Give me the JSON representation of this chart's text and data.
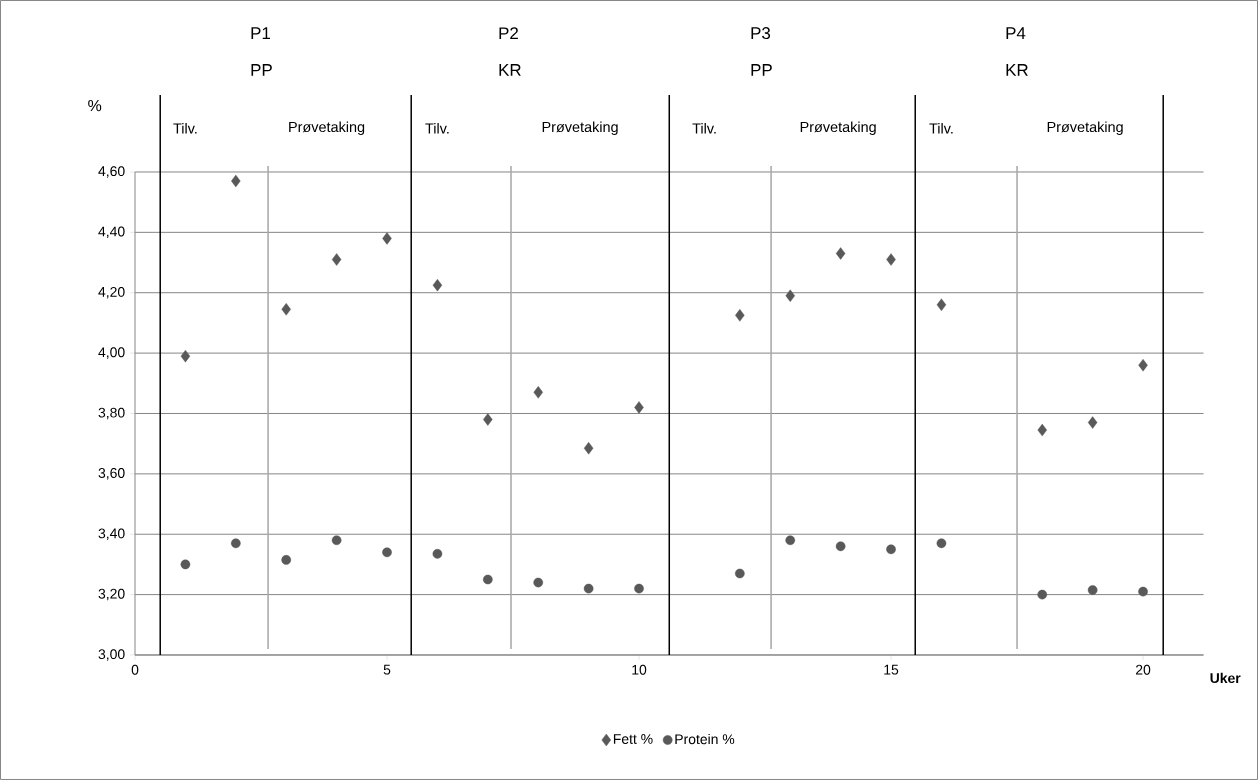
{
  "chart_data": {
    "type": "scatter",
    "xlabel": "Uker",
    "ylabel": "%",
    "x": [
      1,
      2,
      3,
      4,
      5,
      6,
      7,
      8,
      9,
      10,
      12,
      13,
      14,
      15,
      16,
      18,
      19,
      20
    ],
    "series": [
      {
        "name": "Fett %",
        "color": "#595959",
        "marker": "diamond",
        "values": [
          3.99,
          4.57,
          4.145,
          4.31,
          4.38,
          4.225,
          3.78,
          3.87,
          3.685,
          3.82,
          4.125,
          4.19,
          4.33,
          4.31,
          4.16,
          3.745,
          3.77,
          3.96
        ]
      },
      {
        "name": "Protein %",
        "color": "#595959",
        "marker": "circle",
        "values": [
          3.3,
          3.37,
          3.315,
          3.38,
          3.34,
          3.335,
          3.25,
          3.24,
          3.22,
          3.22,
          3.27,
          3.38,
          3.36,
          3.35,
          3.37,
          3.2,
          3.215,
          3.21
        ]
      }
    ],
    "xlim": [
      0,
      21.2
    ],
    "ylim": [
      3.0,
      4.6
    ],
    "xticks": [
      0,
      5,
      10,
      15,
      20
    ],
    "yticks": [
      {
        "value": 3.0,
        "label": "3,00"
      },
      {
        "value": 3.2,
        "label": "3,20"
      },
      {
        "value": 3.4,
        "label": "3,40"
      },
      {
        "value": 3.6,
        "label": "3,60"
      },
      {
        "value": 3.8,
        "label": "3,80"
      },
      {
        "value": 4.0,
        "label": "4,00"
      },
      {
        "value": 4.2,
        "label": "4,20"
      },
      {
        "value": 4.4,
        "label": "4,40"
      },
      {
        "value": 4.6,
        "label": "4,60"
      }
    ],
    "grid": "y",
    "legend": "bottom",
    "ref_lines": [
      {
        "axis": "x",
        "value": 0.5,
        "color": "#000000"
      },
      {
        "axis": "x",
        "value": 2.64,
        "color": "#a6a6a6"
      },
      {
        "axis": "x",
        "value": 5.48,
        "color": "#000000"
      },
      {
        "axis": "x",
        "value": 7.46,
        "color": "#a6a6a6"
      },
      {
        "axis": "x",
        "value": 10.6,
        "color": "#000000"
      },
      {
        "axis": "x",
        "value": 12.62,
        "color": "#a6a6a6"
      },
      {
        "axis": "x",
        "value": 15.48,
        "color": "#000000"
      },
      {
        "axis": "x",
        "value": 17.5,
        "color": "#a6a6a6"
      },
      {
        "axis": "x",
        "value": 20.4,
        "color": "#000000"
      }
    ],
    "annotations": [
      "P1",
      "PP",
      "P2",
      "KR",
      "P3",
      "PP",
      "P4",
      "KR",
      "Tilv.",
      "Prøvetaking",
      "Tilv.",
      "Prøvetaking",
      "Tilv.",
      "Prøvetaking",
      "Tilv.",
      "Prøvetaking"
    ]
  }
}
